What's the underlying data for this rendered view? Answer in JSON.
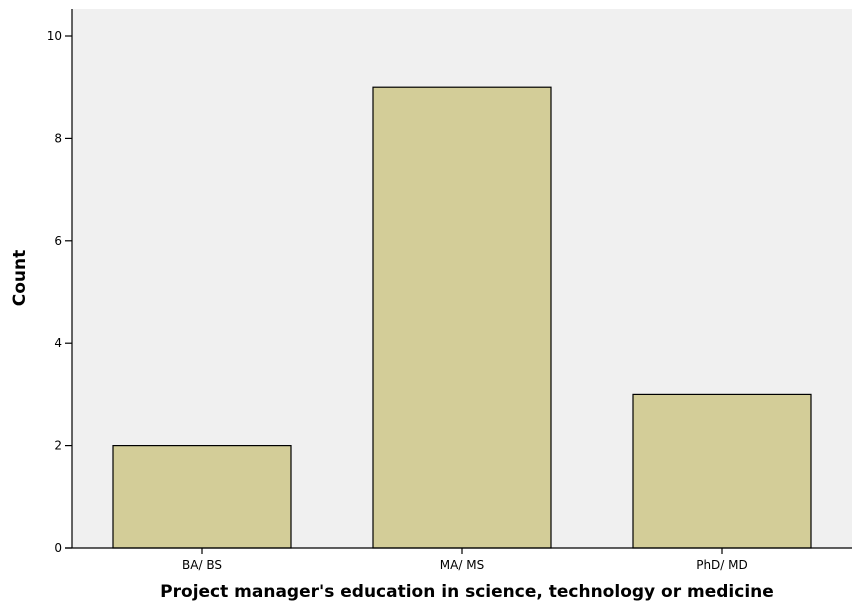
{
  "chart_data": {
    "type": "bar",
    "categories": [
      "BA/ BS",
      "MA/ MS",
      "PhD/ MD"
    ],
    "values": [
      2,
      9,
      3
    ],
    "title": "",
    "xlabel": "Project manager's education in science, technology or medicine",
    "ylabel": "Count",
    "ylim": [
      0,
      10
    ],
    "yticks": [
      0,
      2,
      4,
      6,
      8,
      10
    ],
    "grid": false,
    "legend": "none",
    "colors": {
      "bar_fill": "#d3cd98",
      "bar_stroke": "#000000",
      "plot_background": "#f0f0f0",
      "axis": "#000000"
    }
  }
}
